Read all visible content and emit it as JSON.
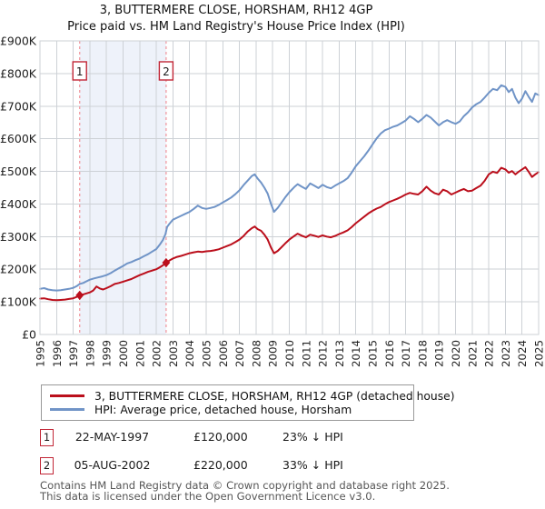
{
  "title": {
    "line1": "3, BUTTERMERE CLOSE, HORSHAM, RH12 4GP",
    "line2": "Price paid vs. HM Land Registry's House Price Index (HPI)"
  },
  "chart_data": {
    "type": "line",
    "unit": "GBP thousands",
    "xlim": [
      1995,
      2025
    ],
    "ylim": [
      0,
      900
    ],
    "grid": true,
    "x_ticks": [
      1995,
      1996,
      1997,
      1998,
      1999,
      2000,
      2001,
      2002,
      2003,
      2004,
      2005,
      2006,
      2007,
      2008,
      2009,
      2010,
      2011,
      2012,
      2013,
      2014,
      2015,
      2016,
      2017,
      2018,
      2019,
      2020,
      2021,
      2022,
      2023,
      2024,
      2025
    ],
    "y_ticks": [
      {
        "v": 0,
        "label": "£0"
      },
      {
        "v": 100,
        "label": "£100K"
      },
      {
        "v": 200,
        "label": "£200K"
      },
      {
        "v": 300,
        "label": "£300K"
      },
      {
        "v": 400,
        "label": "£400K"
      },
      {
        "v": 500,
        "label": "£500K"
      },
      {
        "v": 600,
        "label": "£600K"
      },
      {
        "v": 700,
        "label": "£700K"
      },
      {
        "v": 800,
        "label": "£800K"
      },
      {
        "v": 900,
        "label": "£900K"
      }
    ],
    "colors": {
      "price_line": "#bb0f1c",
      "hpi_line": "#7094c7",
      "grid": "#cdd1d6",
      "shade": "#eef2fa",
      "event_line": "#f0939b",
      "event_box": "#c22737",
      "axis_text": "#222222"
    },
    "shaded_region": {
      "from": 1997.39,
      "to": 2002.59
    },
    "markers": [
      {
        "label": "1",
        "year": 1997.39,
        "value": 120
      },
      {
        "label": "2",
        "year": 2002.59,
        "value": 220
      }
    ],
    "series": [
      {
        "id": "price-paid",
        "name": "3, BUTTERMERE CLOSE, HORSHAM, RH12 4GP (detached house)",
        "color": "#bb0f1c",
        "points": [
          [
            1995,
            110
          ],
          [
            1995.25,
            111
          ],
          [
            1995.5,
            108
          ],
          [
            1995.75,
            106
          ],
          [
            1996,
            105
          ],
          [
            1996.25,
            106
          ],
          [
            1996.5,
            107
          ],
          [
            1996.75,
            109
          ],
          [
            1997,
            111
          ],
          [
            1997.2,
            115
          ],
          [
            1997.39,
            120
          ],
          [
            1997.6,
            123
          ],
          [
            1997.8,
            126
          ],
          [
            1998,
            129
          ],
          [
            1998.2,
            135
          ],
          [
            1998.4,
            147
          ],
          [
            1998.6,
            141
          ],
          [
            1998.8,
            138
          ],
          [
            1999,
            142
          ],
          [
            1999.25,
            148
          ],
          [
            1999.5,
            155
          ],
          [
            1999.75,
            158
          ],
          [
            2000,
            162
          ],
          [
            2000.25,
            166
          ],
          [
            2000.5,
            170
          ],
          [
            2000.75,
            176
          ],
          [
            2001,
            182
          ],
          [
            2001.25,
            187
          ],
          [
            2001.5,
            192
          ],
          [
            2001.75,
            196
          ],
          [
            2002,
            200
          ],
          [
            2002.2,
            206
          ],
          [
            2002.4,
            212
          ],
          [
            2002.59,
            220
          ],
          [
            2002.8,
            227
          ],
          [
            2003,
            233
          ],
          [
            2003.25,
            238
          ],
          [
            2003.5,
            241
          ],
          [
            2003.75,
            245
          ],
          [
            2004,
            249
          ],
          [
            2004.25,
            252
          ],
          [
            2004.5,
            254
          ],
          [
            2004.75,
            253
          ],
          [
            2005,
            255
          ],
          [
            2005.25,
            256
          ],
          [
            2005.5,
            258
          ],
          [
            2005.75,
            261
          ],
          [
            2006,
            266
          ],
          [
            2006.25,
            271
          ],
          [
            2006.5,
            276
          ],
          [
            2006.75,
            283
          ],
          [
            2007,
            291
          ],
          [
            2007.25,
            302
          ],
          [
            2007.5,
            316
          ],
          [
            2007.75,
            326
          ],
          [
            2007.92,
            331
          ],
          [
            2008.1,
            323
          ],
          [
            2008.3,
            318
          ],
          [
            2008.5,
            306
          ],
          [
            2008.7,
            291
          ],
          [
            2008.9,
            266
          ],
          [
            2009.08,
            249
          ],
          [
            2009.3,
            256
          ],
          [
            2009.5,
            266
          ],
          [
            2009.75,
            279
          ],
          [
            2010,
            291
          ],
          [
            2010.3,
            302
          ],
          [
            2010.5,
            309
          ],
          [
            2010.75,
            303
          ],
          [
            2011,
            298
          ],
          [
            2011.25,
            306
          ],
          [
            2011.5,
            303
          ],
          [
            2011.75,
            299
          ],
          [
            2012,
            304
          ],
          [
            2012.25,
            300
          ],
          [
            2012.5,
            298
          ],
          [
            2012.75,
            302
          ],
          [
            2013,
            308
          ],
          [
            2013.25,
            313
          ],
          [
            2013.5,
            319
          ],
          [
            2013.75,
            329
          ],
          [
            2014,
            341
          ],
          [
            2014.25,
            351
          ],
          [
            2014.5,
            361
          ],
          [
            2014.75,
            371
          ],
          [
            2015,
            379
          ],
          [
            2015.25,
            386
          ],
          [
            2015.5,
            391
          ],
          [
            2015.75,
            399
          ],
          [
            2016,
            406
          ],
          [
            2016.25,
            411
          ],
          [
            2016.5,
            416
          ],
          [
            2016.75,
            422
          ],
          [
            2017,
            429
          ],
          [
            2017.25,
            434
          ],
          [
            2017.5,
            431
          ],
          [
            2017.75,
            429
          ],
          [
            2018,
            439
          ],
          [
            2018.25,
            453
          ],
          [
            2018.5,
            441
          ],
          [
            2018.75,
            433
          ],
          [
            2019,
            429
          ],
          [
            2019.25,
            444
          ],
          [
            2019.5,
            439
          ],
          [
            2019.75,
            429
          ],
          [
            2020,
            435
          ],
          [
            2020.25,
            441
          ],
          [
            2020.5,
            446
          ],
          [
            2020.75,
            439
          ],
          [
            2021,
            441
          ],
          [
            2021.25,
            449
          ],
          [
            2021.5,
            456
          ],
          [
            2021.75,
            471
          ],
          [
            2022,
            491
          ],
          [
            2022.25,
            499
          ],
          [
            2022.5,
            495
          ],
          [
            2022.75,
            511
          ],
          [
            2023,
            506
          ],
          [
            2023.2,
            496
          ],
          [
            2023.4,
            501
          ],
          [
            2023.6,
            491
          ],
          [
            2023.8,
            499
          ],
          [
            2024,
            506
          ],
          [
            2024.2,
            513
          ],
          [
            2024.4,
            499
          ],
          [
            2024.6,
            483
          ],
          [
            2024.8,
            491
          ],
          [
            2025,
            498
          ]
        ]
      },
      {
        "id": "hpi",
        "name": "HPI: Average price, detached house, Horsham",
        "color": "#7094c7",
        "points": [
          [
            1995,
            140
          ],
          [
            1995.25,
            142
          ],
          [
            1995.5,
            138
          ],
          [
            1995.75,
            136
          ],
          [
            1996,
            135
          ],
          [
            1996.25,
            136
          ],
          [
            1996.5,
            138
          ],
          [
            1996.75,
            140
          ],
          [
            1997,
            143
          ],
          [
            1997.2,
            148
          ],
          [
            1997.39,
            155
          ],
          [
            1997.6,
            158
          ],
          [
            1997.8,
            163
          ],
          [
            1998,
            168
          ],
          [
            1998.25,
            172
          ],
          [
            1998.5,
            175
          ],
          [
            1998.75,
            178
          ],
          [
            1999,
            182
          ],
          [
            1999.25,
            188
          ],
          [
            1999.5,
            196
          ],
          [
            1999.75,
            203
          ],
          [
            2000,
            210
          ],
          [
            2000.25,
            218
          ],
          [
            2000.5,
            222
          ],
          [
            2000.75,
            228
          ],
          [
            2001,
            233
          ],
          [
            2001.25,
            240
          ],
          [
            2001.5,
            246
          ],
          [
            2001.75,
            254
          ],
          [
            2002,
            262
          ],
          [
            2002.2,
            275
          ],
          [
            2002.4,
            290
          ],
          [
            2002.55,
            308
          ],
          [
            2002.65,
            330
          ],
          [
            2002.8,
            340
          ],
          [
            2003,
            352
          ],
          [
            2003.25,
            358
          ],
          [
            2003.5,
            364
          ],
          [
            2003.75,
            370
          ],
          [
            2004,
            376
          ],
          [
            2004.25,
            385
          ],
          [
            2004.5,
            395
          ],
          [
            2004.75,
            388
          ],
          [
            2005,
            385
          ],
          [
            2005.25,
            388
          ],
          [
            2005.5,
            391
          ],
          [
            2005.75,
            397
          ],
          [
            2006,
            405
          ],
          [
            2006.25,
            412
          ],
          [
            2006.5,
            420
          ],
          [
            2006.75,
            430
          ],
          [
            2007,
            442
          ],
          [
            2007.25,
            458
          ],
          [
            2007.5,
            472
          ],
          [
            2007.75,
            486
          ],
          [
            2007.92,
            491
          ],
          [
            2008.1,
            478
          ],
          [
            2008.3,
            466
          ],
          [
            2008.5,
            450
          ],
          [
            2008.7,
            432
          ],
          [
            2008.9,
            400
          ],
          [
            2009.08,
            376
          ],
          [
            2009.3,
            388
          ],
          [
            2009.5,
            402
          ],
          [
            2009.75,
            420
          ],
          [
            2010,
            436
          ],
          [
            2010.3,
            452
          ],
          [
            2010.5,
            461
          ],
          [
            2010.75,
            453
          ],
          [
            2011,
            446
          ],
          [
            2011.25,
            463
          ],
          [
            2011.5,
            456
          ],
          [
            2011.75,
            449
          ],
          [
            2012,
            459
          ],
          [
            2012.25,
            452
          ],
          [
            2012.5,
            448
          ],
          [
            2012.75,
            456
          ],
          [
            2013,
            463
          ],
          [
            2013.25,
            470
          ],
          [
            2013.5,
            479
          ],
          [
            2013.75,
            496
          ],
          [
            2014,
            516
          ],
          [
            2014.25,
            531
          ],
          [
            2014.5,
            546
          ],
          [
            2014.75,
            563
          ],
          [
            2015,
            582
          ],
          [
            2015.25,
            601
          ],
          [
            2015.5,
            616
          ],
          [
            2015.75,
            626
          ],
          [
            2016,
            631
          ],
          [
            2016.25,
            637
          ],
          [
            2016.5,
            641
          ],
          [
            2016.75,
            648
          ],
          [
            2017,
            656
          ],
          [
            2017.25,
            669
          ],
          [
            2017.5,
            661
          ],
          [
            2017.75,
            651
          ],
          [
            2018,
            661
          ],
          [
            2018.25,
            673
          ],
          [
            2018.5,
            665
          ],
          [
            2018.75,
            653
          ],
          [
            2019,
            641
          ],
          [
            2019.25,
            651
          ],
          [
            2019.5,
            657
          ],
          [
            2019.75,
            651
          ],
          [
            2020,
            646
          ],
          [
            2020.25,
            653
          ],
          [
            2020.5,
            669
          ],
          [
            2020.75,
            681
          ],
          [
            2021,
            696
          ],
          [
            2021.25,
            706
          ],
          [
            2021.5,
            713
          ],
          [
            2021.75,
            726
          ],
          [
            2022,
            741
          ],
          [
            2022.25,
            753
          ],
          [
            2022.5,
            749
          ],
          [
            2022.75,
            764
          ],
          [
            2023,
            759
          ],
          [
            2023.2,
            743
          ],
          [
            2023.4,
            753
          ],
          [
            2023.6,
            726
          ],
          [
            2023.8,
            709
          ],
          [
            2024,
            723
          ],
          [
            2024.2,
            746
          ],
          [
            2024.4,
            729
          ],
          [
            2024.6,
            713
          ],
          [
            2024.8,
            739
          ],
          [
            2025,
            734
          ]
        ]
      }
    ]
  },
  "legend": {
    "items": [
      {
        "label": "3, BUTTERMERE CLOSE, HORSHAM, RH12 4GP (detached house)",
        "color": "#bb0f1c"
      },
      {
        "label": "HPI: Average price, detached house, Horsham",
        "color": "#7094c7"
      }
    ]
  },
  "transactions": [
    {
      "num": "1",
      "date": "22-MAY-1997",
      "price": "£120,000",
      "hpi_diff": "23% ↓ HPI"
    },
    {
      "num": "2",
      "date": "05-AUG-2002",
      "price": "£220,000",
      "hpi_diff": "33% ↓ HPI"
    }
  ],
  "footer": {
    "line1": "Contains HM Land Registry data © Crown copyright and database right 2025.",
    "line2": "This data is licensed under the Open Government Licence v3.0."
  }
}
